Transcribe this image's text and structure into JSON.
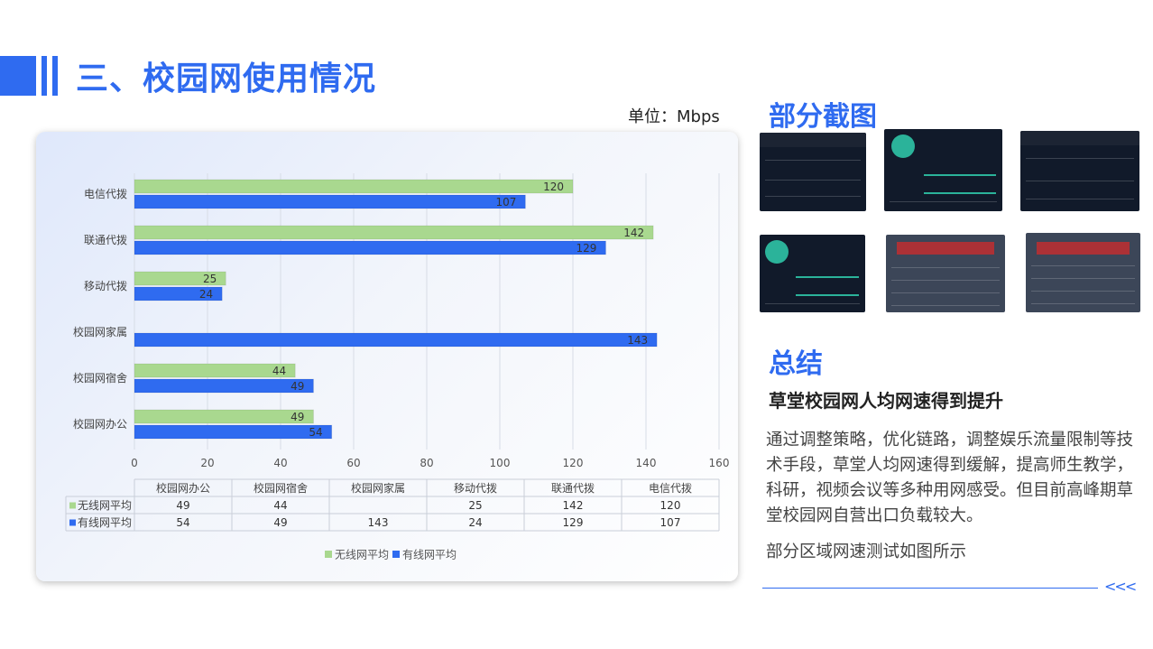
{
  "header": {
    "title": "三、校园网使用情况",
    "unit": "单位：Mbps"
  },
  "sections": {
    "screenshots_title": "部分截图",
    "summary_title": "总结"
  },
  "summary": {
    "headline": "草堂校园网人均网速得到提升",
    "body": "通过调整策略，优化链路，调整娱乐流量限制等技术手段，草堂人均网速得到缓解，提高师生教学，科研，视频会议等多种用网感受。但目前高峰期草堂校园网自营出口负载较大。",
    "note": "部分区域网速测试如图所示"
  },
  "decor": {
    "arrows": "<<<"
  },
  "colors": {
    "accent": "#2f6bf0",
    "wireless": "#a9d88f",
    "wired": "#2f6bf0"
  },
  "chart_data": {
    "type": "bar",
    "orientation": "horizontal",
    "categories": [
      "电信代拨",
      "联通代拨",
      "移动代拨",
      "校园网家属",
      "校园网宿舍",
      "校园网办公"
    ],
    "series": [
      {
        "name": "无线网平均",
        "values": [
          120,
          142,
          25,
          null,
          44,
          49
        ],
        "color": "#a9d88f"
      },
      {
        "name": "有线网平均",
        "values": [
          107,
          129,
          24,
          143,
          49,
          54
        ],
        "color": "#2f6bf0"
      }
    ],
    "xlim": [
      0,
      160
    ],
    "xticks": [
      0,
      20,
      40,
      60,
      80,
      100,
      120,
      140,
      160
    ],
    "grid": true,
    "legend": "bottom",
    "table": {
      "columns": [
        "校园网办公",
        "校园网宿舍",
        "校园网家属",
        "移动代拨",
        "联通代拨",
        "电信代拨"
      ],
      "rows": [
        {
          "name": "无线网平均",
          "values": [
            "49",
            "44",
            "",
            "25",
            "142",
            "120"
          ]
        },
        {
          "name": "有线网平均",
          "values": [
            "54",
            "49",
            "143",
            "24",
            "129",
            "107"
          ]
        }
      ]
    }
  }
}
